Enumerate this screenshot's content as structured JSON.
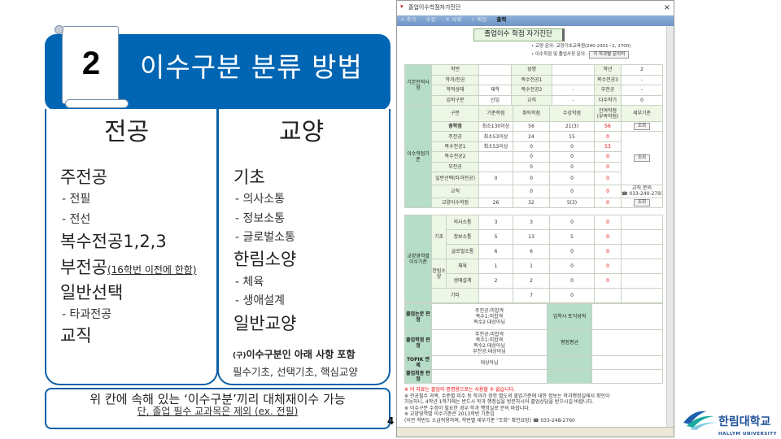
{
  "slide": {
    "number": "2",
    "title": "이수구분 분류 방법",
    "page": "4",
    "major": {
      "heading": "전공",
      "items": [
        {
          "label": "주전공",
          "level": 1
        },
        {
          "label": "- 전필",
          "level": 2
        },
        {
          "label": "- 전선",
          "level": 2
        },
        {
          "label": "복수전공1,2,3",
          "level": 1
        },
        {
          "label": "부전공",
          "note": "(16학번 이전에 한함)",
          "level": 1
        },
        {
          "label": "일반선택",
          "level": 1
        },
        {
          "label": "- 타과전공",
          "level": 2
        },
        {
          "label": "교직",
          "level": 1
        }
      ]
    },
    "liberal": {
      "heading": "교양",
      "items": [
        {
          "label": "기초",
          "level": 1
        },
        {
          "label": "- 의사소통",
          "level": 2
        },
        {
          "label": "- 정보소통",
          "level": 2
        },
        {
          "label": "- 글로벌소통",
          "level": 2
        },
        {
          "label": "한림소양",
          "level": 1
        },
        {
          "label": "- 체육",
          "level": 2
        },
        {
          "label": "- 생애설계",
          "level": 2
        },
        {
          "label": "일반교양",
          "level": 1
        }
      ],
      "old_note_prefix": "(구)",
      "old_note": "이수구분인 아래 사항 포함",
      "old_list": "필수기초, 선택기초, 핵심교양"
    },
    "footer": {
      "main": "위 칸에 속해 있는 ‘이수구분’끼리 대체재이수 가능",
      "sub": "단, 졸업 필수 교과목은 제외 (ex. 전필)"
    },
    "logo": {
      "name": "한림대학교",
      "english": "HALLYM UNIVERSITY",
      "colors": [
        "#1f5fae",
        "#1aa9a0",
        "#7fc8e0"
      ]
    }
  },
  "window": {
    "title": "졸업이수학점자가진단",
    "close": "×",
    "toolbar": [
      "+ 추가",
      "수정",
      "✕ 삭제",
      "✓ 확정",
      "출력"
    ],
    "header": "졸업이수 학점 자가진단",
    "notes_top": [
      "• 교양 문의: 교양기초교육원(240-2301~2, 2700)",
      "• 이수학점 및 졸업사정 문의 :"
    ],
    "dept_button": "각 학과별 문의처",
    "basic": {
      "label": "기본인적사항",
      "rows": [
        [
          "학번",
          "",
          "성명",
          "",
          "학년",
          "2"
        ],
        [
          "학과/전공",
          "",
          "복수전공1",
          "",
          "복수전공3",
          "-"
        ],
        [
          "학적상태",
          "재학",
          "복수전공2",
          "-",
          "부전공",
          "-"
        ],
        [
          "입학구분",
          "신입",
          "교직",
          "-",
          "다수학기",
          "0"
        ]
      ]
    },
    "credits": {
      "label": "이수학점기준",
      "header": [
        "구분",
        "기준학점",
        "취득학점",
        "수강학점",
        "잔여학점\n(부족학점)",
        "세부기준"
      ],
      "rows": [
        [
          "총학점",
          "최소130이상",
          "56",
          "21(3)",
          "56"
        ],
        [
          "주전공",
          "최소53이상",
          "24",
          "15",
          "0"
        ],
        [
          "복수전공1",
          "최소53이상",
          "0",
          "0",
          "53"
        ],
        [
          "복수전공2",
          "",
          "0",
          "0",
          "0"
        ],
        [
          "부전공",
          "",
          "0",
          "0",
          "0"
        ],
        [
          "일반선택(타과전공)",
          "0",
          "0",
          "0",
          "0"
        ],
        [
          "교직",
          "",
          "0",
          "0",
          "0"
        ],
        [
          "교양이수학점",
          "26",
          "32",
          "5(3)",
          "0"
        ]
      ],
      "lookup": "조회",
      "teaching_contact": "교직 문의",
      "teaching_phone": "☎ 033-240-2791"
    },
    "liberal": {
      "label": "교양영역별 이수기준",
      "group1": "기초",
      "group2": "한림소양",
      "rows": [
        [
          "의사소통",
          "3",
          "3",
          "0",
          "0"
        ],
        [
          "정보소통",
          "5",
          "13",
          "5",
          "0"
        ],
        [
          "글로벌소통",
          "6",
          "6",
          "0",
          "0"
        ],
        [
          "체육",
          "1",
          "1",
          "0",
          "0"
        ],
        [
          "생애설계",
          "2",
          "2",
          "0",
          "0"
        ],
        [
          "기타",
          "",
          "7",
          "0",
          ""
        ]
      ]
    },
    "judge": [
      {
        "label": "졸업논문 판정",
        "value": [
          "주전공:미합격",
          "복수1:미합격",
          "복수2:대상아님"
        ],
        "label2": "입학시 토익성적",
        "value2": ""
      },
      {
        "label": "졸업학점 판정",
        "value": [
          "주전공:미합격",
          "복수1:미합격",
          "복수2:대상아님",
          "부전공:대상아님"
        ],
        "label2": "평점평균",
        "value2": ""
      },
      {
        "label": "TOPIK 면제",
        "value": [
          "대상아님"
        ],
        "label2": "",
        "value2": ""
      },
      {
        "label": "졸업최종 판정",
        "value": [
          ""
        ],
        "label2": "",
        "value2": ""
      }
    ],
    "notes": [
      "※ 이 자료는 졸업의 증명용으로는 사용할 수 없습니다.",
      "※ 전공필수 과목, 수준별 미수 등 학과가 정한 별도의 졸업기준에 대한 정보는 학과행정실에서 확인이",
      "가능하니, 4학년 1학기에는 반드시 학과 행정실을 방문하시어 졸업상담을 받으시길 바랍니다.",
      "※ 이수구분 수정이 필요한 경우 학과 행정실로 문의 바랍니다.",
      "※ 교양영역별 이수기준은 2013학번 기준임",
      "(이전 학번도 소급적용하며, 학번별 세부기준 \"조회\" 확인요망) ☎ 033-248-2760"
    ]
  }
}
